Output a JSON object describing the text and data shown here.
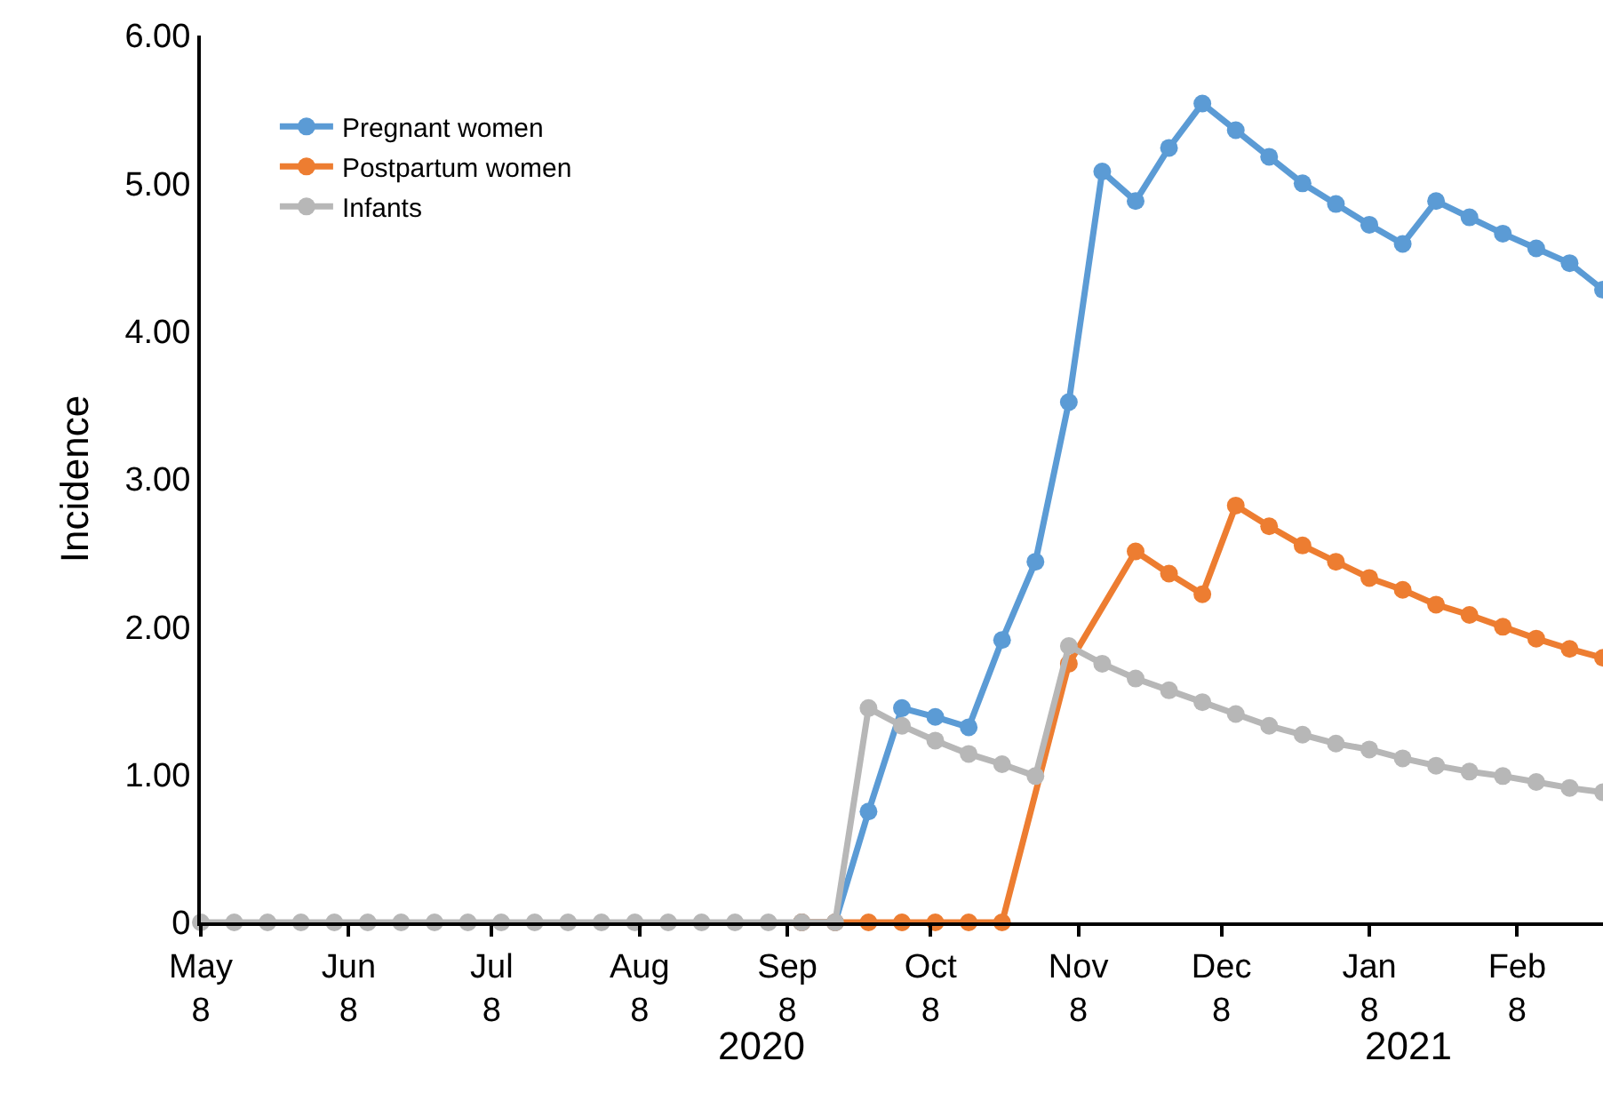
{
  "chart_data": {
    "type": "line",
    "ylabel": "Incidence",
    "x": [
      "2020-05-08",
      "2020-05-15",
      "2020-05-22",
      "2020-05-29",
      "2020-06-05",
      "2020-06-12",
      "2020-06-19",
      "2020-06-26",
      "2020-07-03",
      "2020-07-10",
      "2020-07-17",
      "2020-07-24",
      "2020-07-31",
      "2020-08-07",
      "2020-08-14",
      "2020-08-21",
      "2020-08-28",
      "2020-09-04",
      "2020-09-11",
      "2020-09-18",
      "2020-09-25",
      "2020-10-02",
      "2020-10-09",
      "2020-10-16",
      "2020-10-23",
      "2020-10-30",
      "2020-11-06",
      "2020-11-13",
      "2020-11-20",
      "2020-11-27",
      "2020-12-04",
      "2020-12-11",
      "2020-12-18",
      "2020-12-25",
      "2021-01-01",
      "2021-01-08",
      "2021-01-15",
      "2021-01-22",
      "2021-01-29",
      "2021-02-05",
      "2021-02-12",
      "2021-02-19",
      "2021-02-26"
    ],
    "series": [
      {
        "name": "Pregnant women",
        "color": "#5b9bd5",
        "values": [
          null,
          null,
          null,
          null,
          null,
          null,
          null,
          null,
          null,
          null,
          null,
          null,
          null,
          null,
          null,
          null,
          null,
          null,
          0,
          0,
          0.75,
          1.45,
          1.39,
          1.32,
          1.91,
          2.44,
          3.52,
          5.08,
          4.88,
          5.24,
          5.54,
          5.36,
          5.18,
          5.0,
          4.86,
          4.72,
          4.59,
          4.88,
          4.77,
          4.66,
          4.56,
          4.46,
          4.28
        ]
      },
      {
        "name": "Postpartum women",
        "color": "#ed7d31",
        "values": [
          null,
          null,
          null,
          null,
          null,
          null,
          null,
          null,
          null,
          null,
          null,
          null,
          null,
          null,
          null,
          null,
          null,
          null,
          0,
          0,
          0,
          0,
          0,
          0,
          0,
          null,
          1.75,
          null,
          2.51,
          2.36,
          2.22,
          2.82,
          2.68,
          2.55,
          2.44,
          2.33,
          2.25,
          2.15,
          2.08,
          2.0,
          1.92,
          1.85,
          1.79
        ]
      },
      {
        "name": "Infants",
        "color": "#b7b7b7",
        "values": [
          0,
          0,
          0,
          0,
          0,
          0,
          0,
          0,
          0,
          0,
          0,
          0,
          0,
          0,
          0,
          0,
          0,
          0,
          0,
          0,
          1.45,
          1.33,
          1.23,
          1.14,
          1.07,
          0.99,
          1.87,
          1.75,
          1.65,
          1.57,
          1.49,
          1.41,
          1.33,
          1.27,
          1.21,
          1.17,
          1.11,
          1.06,
          1.02,
          0.99,
          0.95,
          0.91,
          0.88
        ]
      }
    ],
    "xlim": [
      "2020-05-08",
      "2021-02-26"
    ],
    "xticks": [
      {
        "value": "2020-05-08",
        "label": "May\n8"
      },
      {
        "value": "2020-06-08",
        "label": "Jun\n8"
      },
      {
        "value": "2020-07-08",
        "label": "Jul\n8"
      },
      {
        "value": "2020-08-08",
        "label": "Aug\n8"
      },
      {
        "value": "2020-09-08",
        "label": "Sep\n8"
      },
      {
        "value": "2020-10-08",
        "label": "Oct\n8"
      },
      {
        "value": "2020-11-08",
        "label": "Nov\n8"
      },
      {
        "value": "2020-12-08",
        "label": "Dec\n8"
      },
      {
        "value": "2021-01-08",
        "label": "Jan\n8"
      },
      {
        "value": "2021-02-08",
        "label": "Feb\n8"
      }
    ],
    "ylim": [
      0,
      6
    ],
    "yticks": [
      {
        "value": 0,
        "label": "0"
      },
      {
        "value": 1,
        "label": "1.00"
      },
      {
        "value": 2,
        "label": "2.00"
      },
      {
        "value": 3,
        "label": "3.00"
      },
      {
        "value": 4,
        "label": "4.00"
      },
      {
        "value": 5,
        "label": "5.00"
      },
      {
        "value": 6,
        "label": "6.00"
      }
    ],
    "annotations": [
      "2020",
      "2021"
    ],
    "legend": "top left",
    "marker": "circle",
    "line_style": "solid"
  }
}
